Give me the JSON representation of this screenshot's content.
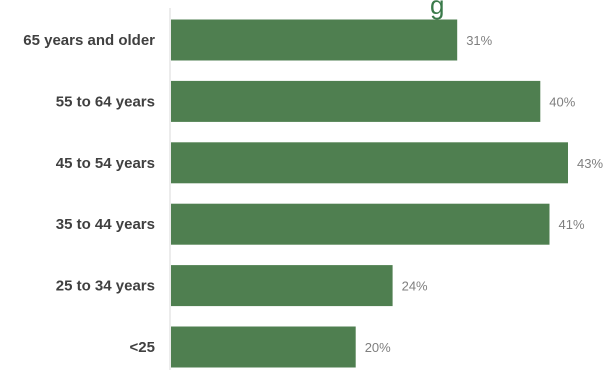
{
  "chart_data": {
    "type": "bar",
    "orientation": "horizontal",
    "categories": [
      "65 years and older",
      "55 to 64 years",
      "45 to 54 years",
      "35 to 44 years",
      "25 to 34 years",
      "<25"
    ],
    "values": [
      31,
      40,
      43,
      41,
      24,
      20
    ],
    "value_labels": [
      "31%",
      "40%",
      "43%",
      "41%",
      "24%",
      "20%"
    ],
    "title_partial": "g",
    "xlabel": "",
    "ylabel": "",
    "xlim": [
      0,
      43
    ],
    "grid": false,
    "bar_color": "#4f7f50",
    "label_color": "#404040",
    "value_label_color": "#7f7f7f",
    "title_color": "#3a7a4a"
  }
}
